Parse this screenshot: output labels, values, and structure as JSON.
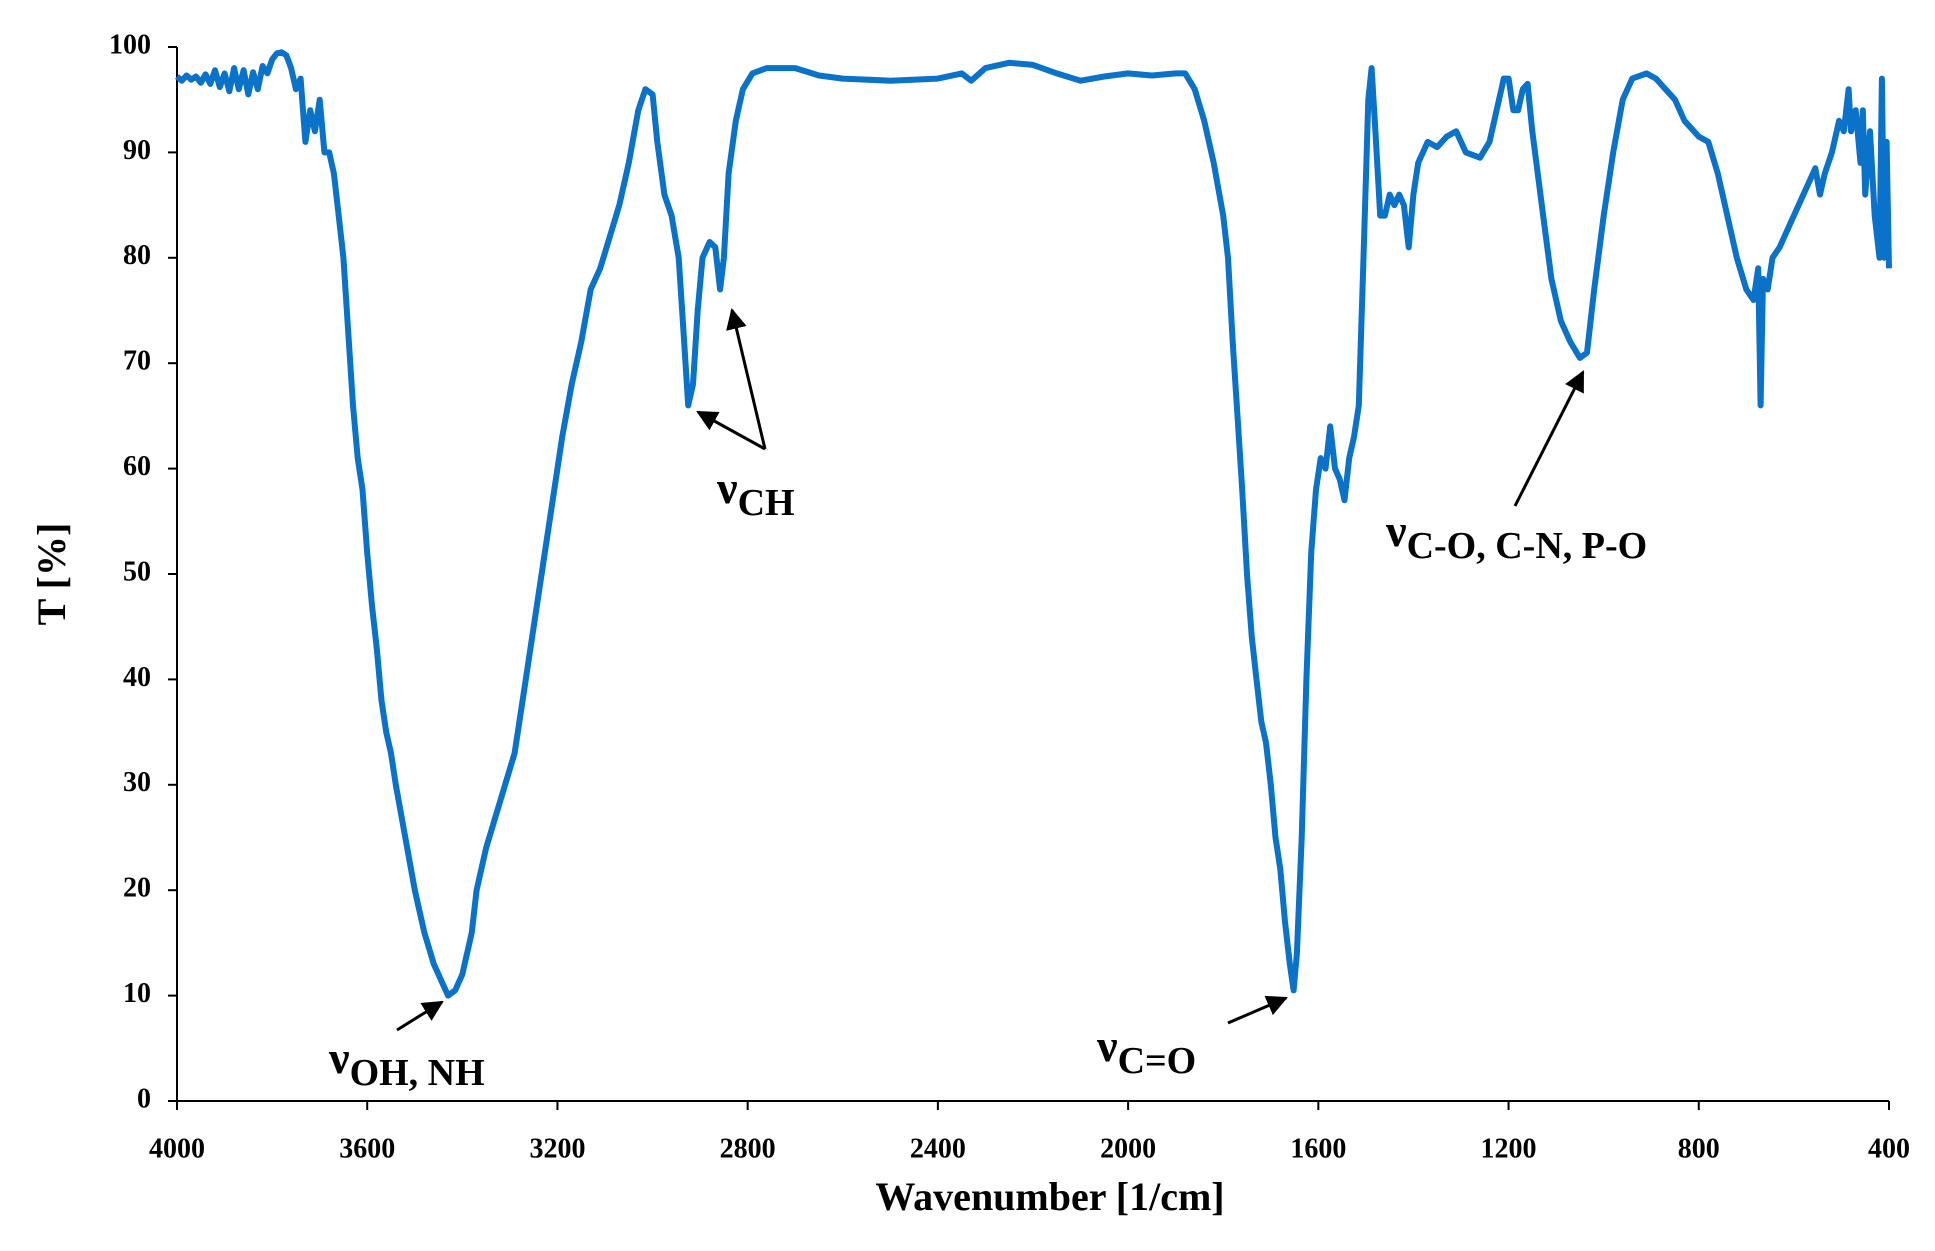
{
  "chart_data": {
    "type": "line",
    "xlabel": "Wavenumber [1/cm]",
    "ylabel": "T [%]",
    "color": "#0a72c8",
    "xlim": [
      4000,
      400
    ],
    "xticks": [
      4000,
      3600,
      3200,
      2800,
      2400,
      2000,
      1600,
      1200,
      800,
      400
    ],
    "ylim": [
      0,
      100
    ],
    "yticks": [
      0,
      10,
      20,
      30,
      40,
      50,
      60,
      70,
      80,
      90,
      100
    ],
    "annotations": [
      {
        "text": "ν",
        "sub": "OH, NH"
      },
      {
        "text": "ν",
        "sub": "CH"
      },
      {
        "text": "ν",
        "sub": "C=O"
      },
      {
        "text": "ν",
        "sub": "C-O, C-N, P-O"
      }
    ],
    "x": [
      4000,
      3990,
      3980,
      3970,
      3960,
      3950,
      3940,
      3930,
      3920,
      3910,
      3900,
      3890,
      3880,
      3870,
      3860,
      3850,
      3840,
      3830,
      3820,
      3810,
      3800,
      3790,
      3780,
      3770,
      3760,
      3750,
      3740,
      3730,
      3720,
      3710,
      3700,
      3690,
      3680,
      3670,
      3660,
      3650,
      3640,
      3630,
      3620,
      3610,
      3600,
      3590,
      3580,
      3570,
      3560,
      3550,
      3540,
      3520,
      3500,
      3480,
      3460,
      3440,
      3430,
      3415,
      3400,
      3380,
      3370,
      3350,
      3330,
      3310,
      3290,
      3270,
      3250,
      3230,
      3210,
      3190,
      3170,
      3150,
      3130,
      3110,
      3090,
      3070,
      3050,
      3030,
      3015,
      3000,
      2990,
      2975,
      2960,
      2945,
      2935,
      2925,
      2915,
      2905,
      2895,
      2880,
      2868,
      2858,
      2850,
      2840,
      2825,
      2810,
      2790,
      2760,
      2700,
      2650,
      2600,
      2500,
      2400,
      2350,
      2330,
      2300,
      2250,
      2200,
      2150,
      2100,
      2050,
      2000,
      1950,
      1900,
      1880,
      1860,
      1840,
      1820,
      1800,
      1790,
      1780,
      1770,
      1760,
      1750,
      1740,
      1730,
      1720,
      1710,
      1700,
      1690,
      1680,
      1670,
      1660,
      1652,
      1645,
      1635,
      1625,
      1615,
      1605,
      1595,
      1585,
      1575,
      1565,
      1555,
      1545,
      1535,
      1525,
      1515,
      1505,
      1495,
      1488,
      1480,
      1470,
      1460,
      1450,
      1440,
      1430,
      1420,
      1410,
      1400,
      1390,
      1370,
      1350,
      1330,
      1310,
      1290,
      1260,
      1240,
      1220,
      1210,
      1200,
      1190,
      1180,
      1170,
      1160,
      1150,
      1130,
      1110,
      1090,
      1070,
      1050,
      1035,
      1020,
      1000,
      980,
      960,
      940,
      910,
      890,
      870,
      850,
      830,
      810,
      800,
      780,
      760,
      740,
      720,
      700,
      685,
      675,
      670,
      665,
      655,
      645,
      630,
      610,
      590,
      570,
      555,
      545,
      535,
      520,
      505,
      495,
      485,
      480,
      470,
      460,
      455,
      450,
      440,
      430,
      420,
      415,
      410,
      405,
      400
    ],
    "values": [
      97.2,
      96.8,
      97.3,
      96.9,
      97.2,
      96.6,
      97.4,
      96.5,
      97.8,
      96.2,
      97.5,
      95.8,
      98,
      96,
      97.8,
      95.5,
      97.6,
      96,
      98.2,
      97.5,
      98.8,
      99.4,
      99.5,
      99.2,
      98,
      96,
      97,
      91,
      94,
      92,
      95,
      90,
      90,
      88,
      84,
      80,
      73,
      66,
      61,
      58,
      52,
      47,
      43,
      38,
      35,
      33,
      30,
      25,
      20,
      16,
      13,
      11,
      10,
      10.5,
      12,
      16,
      20,
      24,
      27,
      30,
      33,
      39,
      45,
      51,
      57,
      63,
      68,
      72,
      77,
      79,
      82,
      85,
      89,
      94,
      96,
      95.5,
      91,
      86,
      84,
      80,
      73,
      66,
      68,
      75,
      80,
      81.5,
      81,
      77,
      80,
      88,
      93,
      96,
      97.5,
      98,
      98,
      97.3,
      97,
      96.8,
      97,
      97.5,
      96.8,
      98,
      98.5,
      98.3,
      97.5,
      96.8,
      97.2,
      97.5,
      97.3,
      97.5,
      97.5,
      96,
      93,
      89,
      84,
      80,
      72,
      65,
      58,
      50,
      44,
      40,
      36,
      34,
      30,
      25,
      22,
      17,
      13,
      10.5,
      14,
      25,
      40,
      52,
      58,
      61,
      60,
      64,
      60,
      59,
      57,
      61,
      63,
      66,
      80,
      95,
      98,
      92,
      84,
      84,
      86,
      85,
      86,
      85,
      81,
      86,
      89,
      91,
      90.5,
      91.5,
      92,
      90,
      89.5,
      91,
      95,
      97,
      97,
      94,
      94,
      96,
      96.5,
      92,
      85,
      78,
      74,
      72,
      70.5,
      71,
      77,
      84,
      90,
      95,
      97,
      97.5,
      97,
      96,
      95,
      93,
      92,
      91.5,
      91,
      88,
      84,
      80,
      77,
      76,
      79,
      66,
      78,
      77,
      80,
      81,
      83,
      85,
      87,
      88.5,
      86,
      88,
      90,
      93,
      92,
      96,
      92,
      94,
      89,
      94,
      86,
      92,
      84,
      80,
      97,
      80,
      91,
      79
    ]
  }
}
